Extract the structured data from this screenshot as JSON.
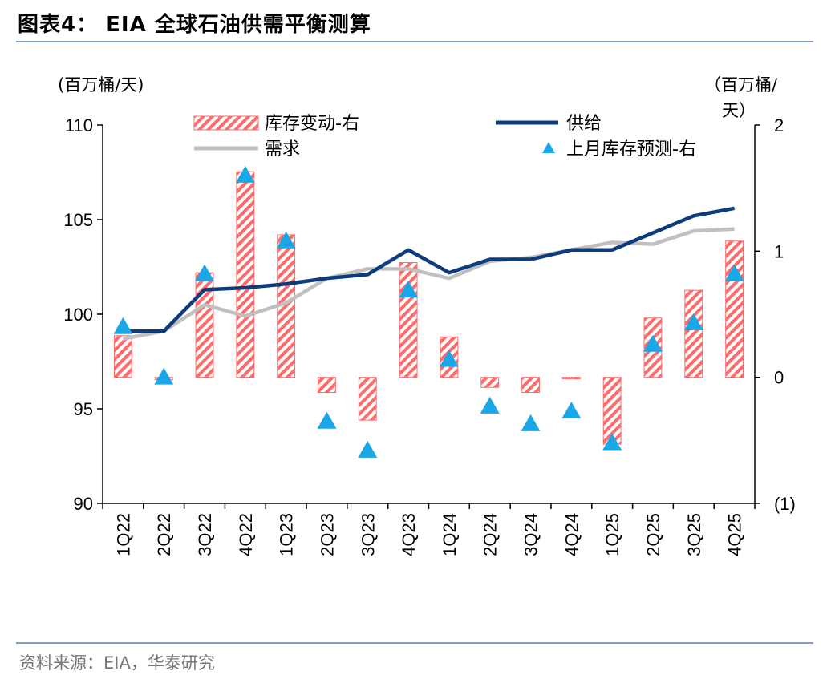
{
  "figure": {
    "title": "图表4：  EIA 全球石油供需平衡测算",
    "source": "资料来源：EIA，华泰研究"
  },
  "colors": {
    "supply": "#0d3c7d",
    "demand": "#c0c0c0",
    "inventory_change": "#ff6b6b",
    "inventory_forecast": "#1aa7e8",
    "rule": "#7f9fc6"
  },
  "chart_data": {
    "type": "bar+line",
    "categories": [
      "1Q22",
      "2Q22",
      "3Q22",
      "4Q22",
      "1Q23",
      "2Q23",
      "3Q23",
      "4Q23",
      "1Q24",
      "2Q24",
      "3Q24",
      "4Q24",
      "1Q25",
      "2Q25",
      "3Q25",
      "4Q25"
    ],
    "left_axis": {
      "unit_label": "(百万桶/天)",
      "ylim": [
        90,
        110
      ],
      "ticks": [
        "110",
        "105",
        "100",
        "95",
        "90"
      ],
      "tick_values": [
        110,
        105,
        100,
        95,
        90
      ]
    },
    "right_axis": {
      "unit_label_line1": "（百万桶/",
      "unit_label_line2": "天）",
      "ylim": [
        -1,
        2
      ],
      "ticks": [
        "2",
        "1",
        "0",
        "(1)"
      ],
      "tick_values": [
        2,
        1,
        0,
        -1
      ]
    },
    "legend": [
      {
        "key": "inventory_change",
        "label": "库存变动-右"
      },
      {
        "key": "supply",
        "label": "供给"
      },
      {
        "key": "demand",
        "label": "需求"
      },
      {
        "key": "inventory_forecast",
        "label": "上月库存预测-右"
      }
    ],
    "series": [
      {
        "name": "库存变动-右",
        "key": "inventory_change",
        "type": "bar",
        "axis": "right",
        "values": [
          0.33,
          -0.02,
          0.83,
          1.63,
          1.13,
          -0.12,
          -0.34,
          0.91,
          0.32,
          -0.08,
          -0.12,
          0.0,
          -0.53,
          0.47,
          0.69,
          1.08
        ]
      },
      {
        "name": "供给",
        "key": "supply",
        "type": "line",
        "axis": "left",
        "values": [
          99.1,
          99.1,
          101.3,
          101.4,
          101.6,
          101.9,
          102.1,
          103.4,
          102.2,
          102.9,
          102.9,
          103.4,
          103.4,
          104.3,
          105.2,
          105.6
        ]
      },
      {
        "name": "需求",
        "key": "demand",
        "type": "line",
        "axis": "left",
        "values": [
          98.7,
          99.1,
          100.5,
          99.9,
          100.6,
          101.9,
          102.4,
          102.4,
          101.9,
          102.8,
          103.0,
          103.4,
          103.8,
          103.7,
          104.4,
          104.5
        ]
      },
      {
        "name": "上月库存预测-右",
        "key": "inventory_forecast",
        "type": "marker",
        "axis": "right",
        "values": [
          0.4,
          0.0,
          0.82,
          1.6,
          1.08,
          -0.35,
          -0.58,
          0.69,
          0.14,
          -0.23,
          -0.37,
          -0.27,
          -0.52,
          0.26,
          0.43,
          0.82
        ]
      }
    ]
  }
}
